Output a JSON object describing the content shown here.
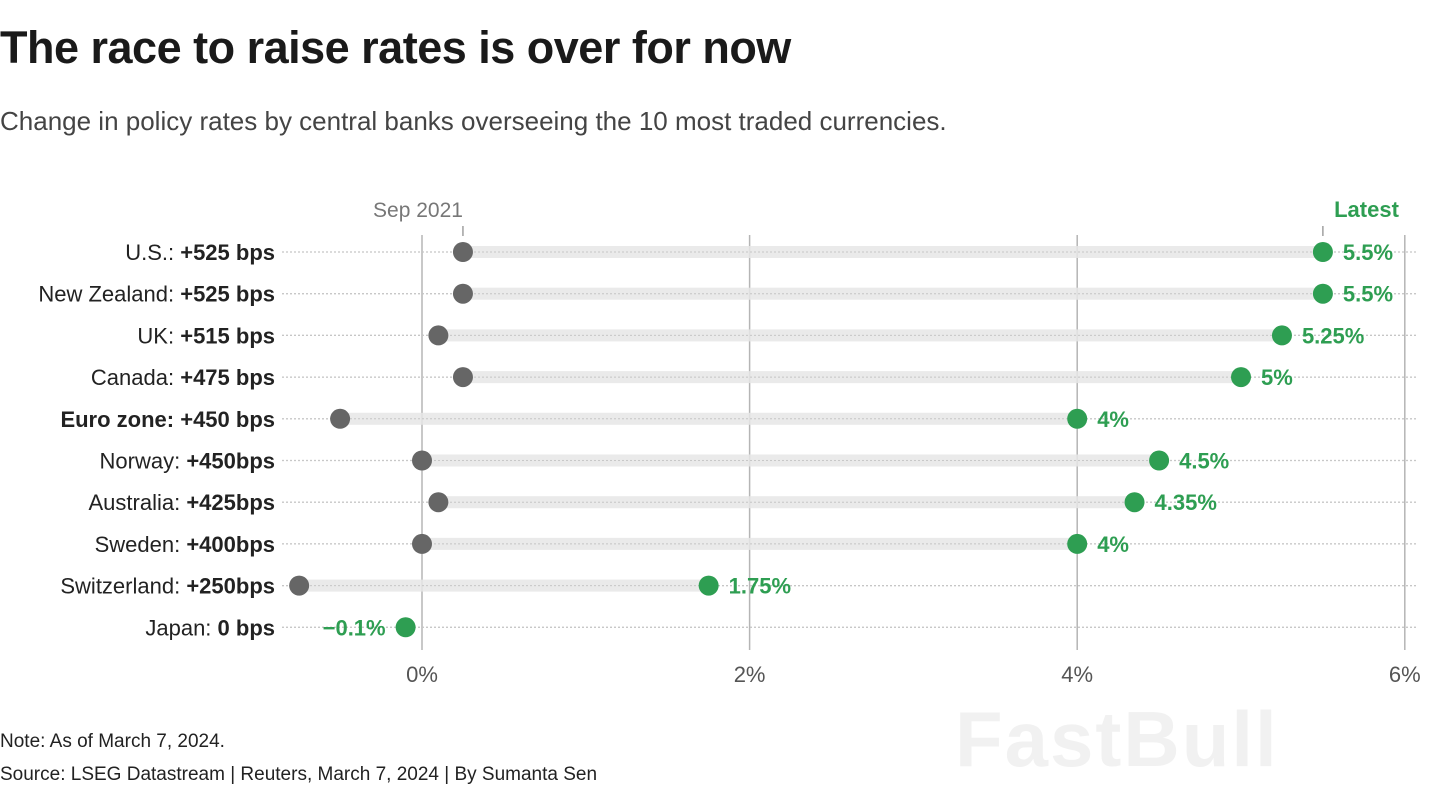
{
  "title": "The race to raise rates is over for now",
  "subtitle": "Change in policy rates by central banks overseeing the 10 most traded currencies.",
  "note": "Note: As of March 7, 2024.",
  "source": "Source: LSEG Datastream | Reuters, March 7, 2024 | By Sumanta Sen",
  "watermark": "FastBull",
  "colors": {
    "start": "#666666",
    "latest": "#2e9e52",
    "range_bar": "#e6e6e6"
  },
  "chart_data": {
    "type": "dumbbell",
    "start_label": "Sep 2021",
    "end_label": "Latest",
    "xlim": [
      -0.8,
      6.1
    ],
    "xticks": [
      0,
      2,
      4,
      6
    ],
    "xtick_labels": [
      "0%",
      "2%",
      "4%",
      "6%"
    ],
    "grid": true,
    "rows": [
      {
        "name": "U.S.:",
        "change": "+525 bps",
        "start": 0.25,
        "latest": 5.5,
        "latest_label": "5.5%",
        "bold_name": false
      },
      {
        "name": "New Zealand:",
        "change": "+525 bps",
        "start": 0.25,
        "latest": 5.5,
        "latest_label": "5.5%",
        "bold_name": false
      },
      {
        "name": "UK:",
        "change": "+515 bps",
        "start": 0.1,
        "latest": 5.25,
        "latest_label": "5.25%",
        "bold_name": false
      },
      {
        "name": "Canada:",
        "change": "+475 bps",
        "start": 0.25,
        "latest": 5.0,
        "latest_label": "5%",
        "bold_name": false
      },
      {
        "name": "Euro zone:",
        "change": "+450 bps",
        "start": -0.5,
        "latest": 4.0,
        "latest_label": "4%",
        "bold_name": true
      },
      {
        "name": "Norway:",
        "change": "+450bps",
        "start": 0.0,
        "latest": 4.5,
        "latest_label": "4.5%",
        "bold_name": false
      },
      {
        "name": "Australia:",
        "change": "+425bps",
        "start": 0.1,
        "latest": 4.35,
        "latest_label": "4.35%",
        "bold_name": false
      },
      {
        "name": "Sweden:",
        "change": "+400bps",
        "start": 0.0,
        "latest": 4.0,
        "latest_label": "4%",
        "bold_name": false
      },
      {
        "name": "Switzerland:",
        "change": "+250bps",
        "start": -0.75,
        "latest": 1.75,
        "latest_label": "1.75%",
        "bold_name": false
      },
      {
        "name": "Japan:",
        "change": "0 bps",
        "start": -0.1,
        "latest": -0.1,
        "latest_label": "−0.1%",
        "bold_name": false
      }
    ]
  }
}
